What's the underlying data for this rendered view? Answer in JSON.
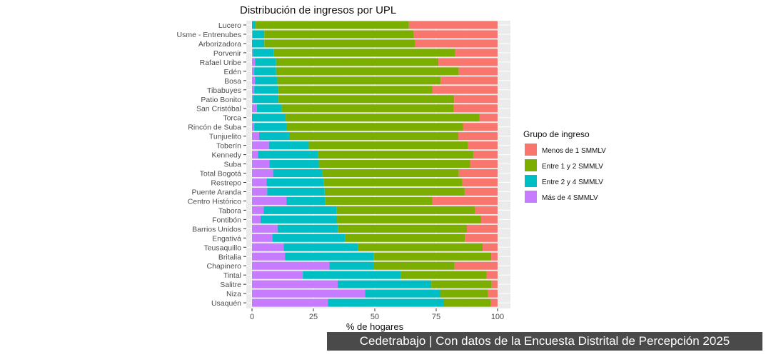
{
  "chart_data": {
    "type": "bar",
    "orientation": "horizontal",
    "stacked": true,
    "title": "Distribución de ingresos por UPL",
    "xlabel": "% de hogares",
    "ylabel": "",
    "xlim": [
      0,
      100
    ],
    "xticks": [
      "0",
      "25",
      "50",
      "75",
      "100"
    ],
    "grid": true,
    "legend_title": "Grupo de ingreso",
    "legend_position": "right",
    "categories": [
      "Lucero",
      "Usme - Entrenubes",
      "Arborizadora",
      "Porvenir",
      "Rafael Uribe",
      "Edén",
      "Bosa",
      "Tibabuyes",
      "Patio Bonito",
      "San Cristóbal",
      "Torca",
      "Rincón de Suba",
      "Tunjuelito",
      "Toberín",
      "Kennedy",
      "Suba",
      "Total Bogotá",
      "Restrepo",
      "Puente Aranda",
      "Centro Histórico",
      "Tabora",
      "Fontibón",
      "Barrios Unidos",
      "Engativá",
      "Teusaquillo",
      "Britalia",
      "Chapinero",
      "Tintal",
      "Salitre",
      "Niza",
      "Usaquén"
    ],
    "series": [
      {
        "name": "Más de 4 SMMLV",
        "color": "#C77CFF",
        "values": [
          0,
          0.2,
          0,
          0.4,
          1.3,
          0.9,
          1.2,
          0.9,
          0.4,
          2.0,
          0,
          0.9,
          2.9,
          6.9,
          2.4,
          7.1,
          8.6,
          5.9,
          6.2,
          14.0,
          4.7,
          3.5,
          10.4,
          8.3,
          12.9,
          13.4,
          31.5,
          20.7,
          34.9,
          46.0,
          30.9
        ]
      },
      {
        "name": "Entre 2 y 4 SMMLV",
        "color": "#00BFC4",
        "values": [
          1.5,
          4.8,
          5.0,
          8.4,
          8.5,
          8.9,
          9.1,
          9.9,
          10.4,
          10.1,
          13.7,
          13.2,
          12.5,
          16.2,
          24.6,
          20.1,
          19.9,
          23.2,
          23.4,
          15.7,
          29.8,
          31.1,
          24.7,
          29.6,
          30.3,
          36.1,
          18.2,
          40.0,
          38.1,
          30.6,
          47.3
        ]
      },
      {
        "name": "Entre 1 y 2 SMMLV",
        "color": "#7CAE00",
        "values": [
          62.4,
          60.7,
          61.4,
          74.0,
          66.1,
          74.4,
          66.5,
          62.6,
          71.5,
          70.0,
          79.0,
          71.8,
          68.6,
          64.9,
          63.1,
          61.6,
          55.7,
          56.6,
          57.0,
          43.8,
          56.2,
          58.7,
          52.4,
          48.8,
          50.7,
          47.9,
          32.8,
          34.9,
          24.6,
          19.5,
          19.1
        ]
      },
      {
        "name": "Menos de 1 SMMLV",
        "color": "#F8766D",
        "values": [
          36.1,
          34.3,
          33.6,
          17.2,
          24.1,
          15.8,
          23.2,
          26.6,
          17.7,
          17.9,
          7.3,
          14.1,
          16.0,
          12.0,
          9.9,
          11.2,
          15.8,
          14.3,
          13.4,
          26.5,
          9.3,
          6.7,
          12.5,
          13.3,
          6.1,
          2.6,
          17.5,
          4.4,
          2.4,
          3.9,
          2.7
        ]
      }
    ],
    "legend_order": [
      "Menos de 1 SMMLV",
      "Entre 1 y 2 SMMLV",
      "Entre 2 y 4 SMMLV",
      "Más de 4 SMMLV"
    ]
  },
  "caption": "Cedetrabajo | Con datos de la Encuesta Distrital de Percepción 2025"
}
